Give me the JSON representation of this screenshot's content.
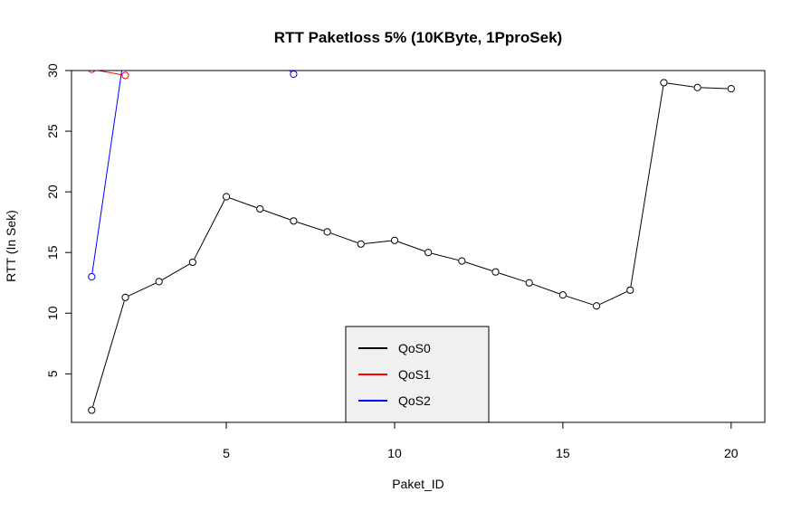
{
  "chart_data": {
    "type": "line",
    "title": "RTT Paketloss 5% (10KByte, 1PproSek)",
    "xlabel": "Paket_ID",
    "ylabel": "RTT (In Sek)",
    "xlim": [
      0.4,
      21
    ],
    "ylim": [
      1,
      30
    ],
    "xticks": [
      5,
      10,
      15,
      20
    ],
    "yticks": [
      5,
      10,
      15,
      20,
      25,
      30
    ],
    "grid": false,
    "legend_position": "bottom-center",
    "series": [
      {
        "name": "QoS0",
        "color": "#000000",
        "x": [
          1,
          2,
          3,
          4,
          5,
          6,
          7,
          8,
          9,
          10,
          11,
          12,
          13,
          14,
          15,
          16,
          17,
          18,
          19,
          20
        ],
        "y": [
          2.0,
          11.3,
          12.6,
          14.2,
          19.6,
          18.6,
          17.6,
          16.7,
          15.7,
          16.0,
          15.0,
          14.3,
          13.4,
          12.5,
          11.5,
          10.6,
          11.9,
          29.0,
          28.6,
          28.5
        ]
      },
      {
        "name": "QoS1",
        "color": "#ff0000",
        "x": [
          1,
          2
        ],
        "y": [
          30.1,
          29.6
        ]
      },
      {
        "name": "QoS2",
        "color": "#0000ff",
        "x": [
          1,
          2,
          6,
          7
        ],
        "y": [
          13.0,
          32.0,
          32.0,
          29.7
        ]
      }
    ]
  }
}
